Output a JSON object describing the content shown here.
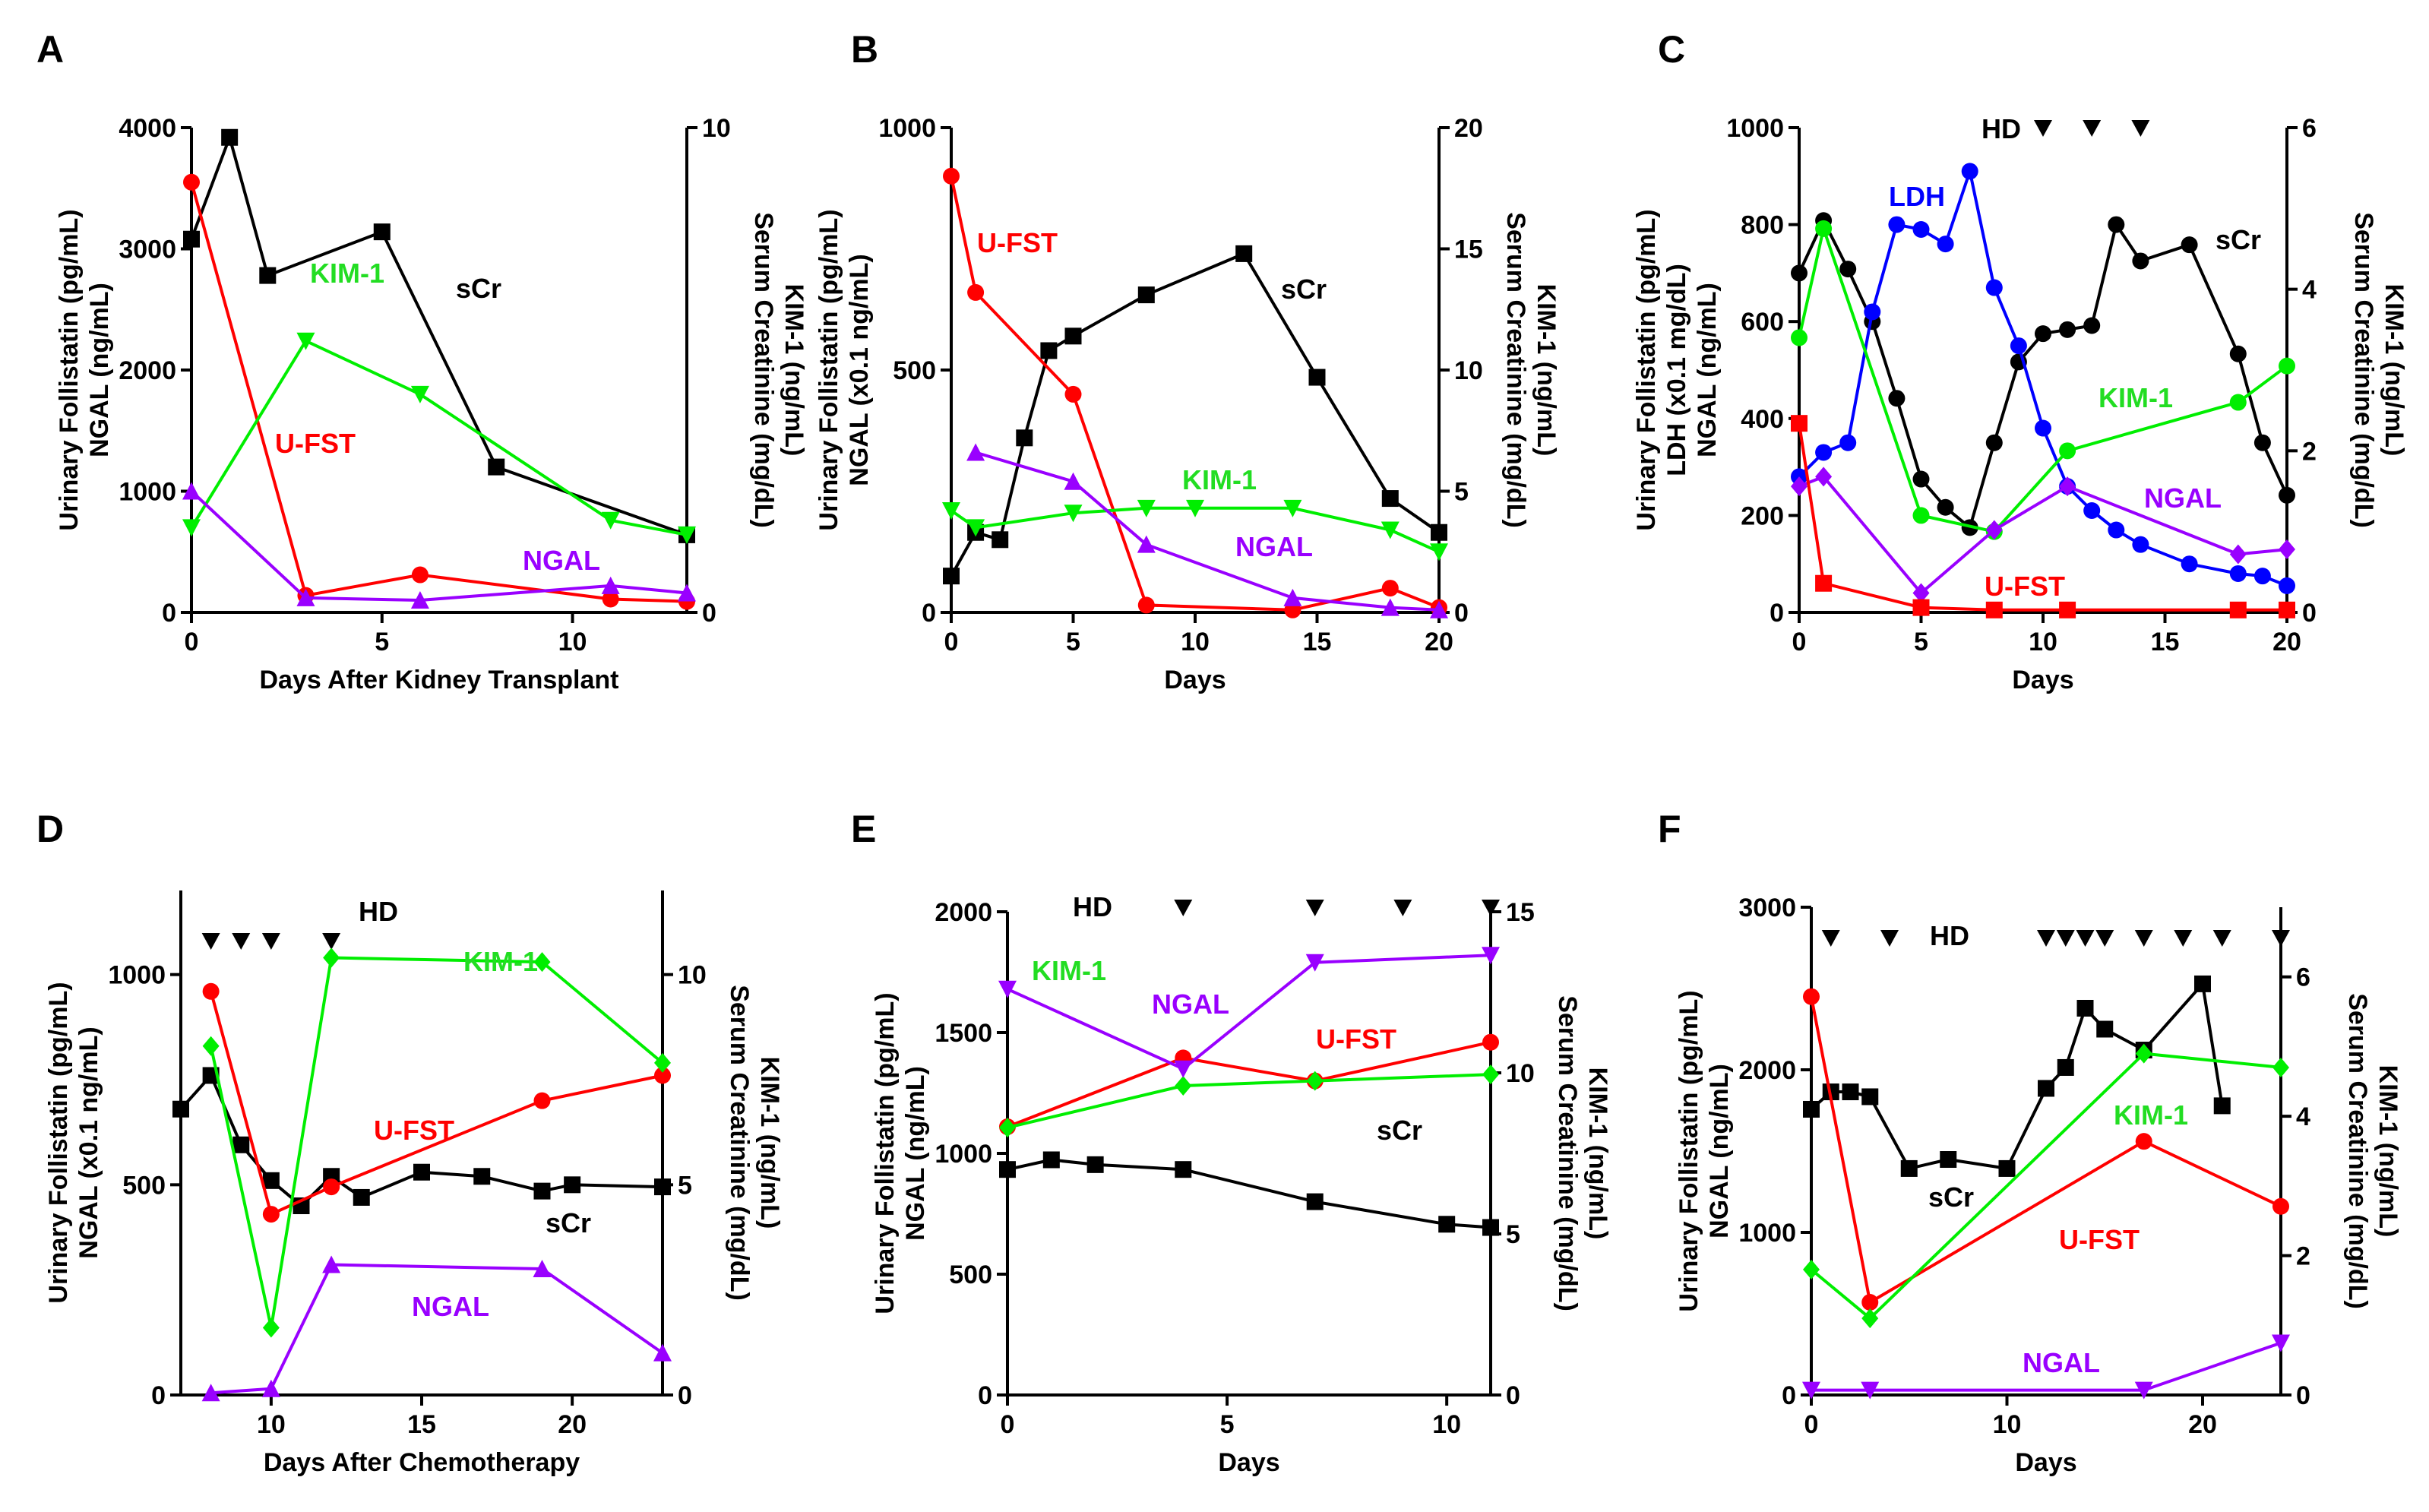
{
  "chart_data": [
    {
      "type": "line",
      "panel": "A",
      "xlabel": "Days After Kidney Transplant",
      "ylabel": [
        "Urinary Follistatin (pg/mL)",
        "NGAL (ng/mL)"
      ],
      "y2label": [
        "Serum Creatinine (mg/dL)",
        "KIM-1 (ng/mL)"
      ],
      "xlim": [
        0,
        13
      ],
      "xticks": [
        0,
        5,
        10
      ],
      "ylim": [
        0,
        4000
      ],
      "yticks": [
        0,
        1000,
        2000,
        3000,
        4000
      ],
      "y2lim": [
        0,
        10
      ],
      "y2ticks": [
        0,
        10
      ],
      "hd_label": "",
      "hd_days": [],
      "series": [
        {
          "name": "sCr",
          "label": "sCr",
          "color": "#000000",
          "marker": "square",
          "axis": "right",
          "x": [
            0,
            1,
            2,
            5,
            8,
            13
          ],
          "y": [
            7.7,
            9.8,
            6.95,
            7.85,
            3.0,
            1.6
          ]
        },
        {
          "name": "U-FST",
          "label": "U-FST",
          "color": "#ff0000",
          "marker": "circle",
          "axis": "left",
          "x": [
            0,
            3,
            6,
            11,
            13
          ],
          "y": [
            3550,
            140,
            310,
            110,
            90
          ]
        },
        {
          "name": "KIM-1",
          "label": "KIM-1",
          "color": "#00ee00",
          "marker": "triangle-down",
          "axis": "right",
          "x": [
            0,
            3,
            6,
            11,
            13
          ],
          "y": [
            1.75,
            5.6,
            4.5,
            1.9,
            1.6
          ]
        },
        {
          "name": "NGAL",
          "label": "NGAL",
          "color": "#9900ff",
          "marker": "triangle-up",
          "axis": "left",
          "x": [
            0,
            3,
            6,
            11,
            13
          ],
          "y": [
            1000,
            120,
            100,
            220,
            160
          ]
        }
      ]
    },
    {
      "type": "line",
      "panel": "B",
      "xlabel": "Days",
      "ylabel": [
        "Urinary Follistatin (pg/mL)",
        "NGAL (x0.1 ng/mL)"
      ],
      "y2label": [
        "Serum Creatinine (mg/dL)",
        "KIM-1 (ng/mL)"
      ],
      "xlim": [
        0,
        20
      ],
      "xticks": [
        0,
        5,
        10,
        15,
        20
      ],
      "ylim": [
        0,
        1000
      ],
      "yticks": [
        0,
        500,
        1000
      ],
      "y2lim": [
        0,
        20
      ],
      "y2ticks": [
        0,
        5,
        10,
        15,
        20
      ],
      "hd_label": "",
      "hd_days": [],
      "series": [
        {
          "name": "sCr",
          "label": "sCr",
          "color": "#000000",
          "marker": "square",
          "axis": "right",
          "x": [
            0,
            1,
            2,
            3,
            4,
            5,
            8,
            12,
            15,
            18,
            20
          ],
          "y": [
            1.5,
            3.3,
            3.0,
            7.2,
            10.8,
            11.4,
            13.1,
            14.8,
            9.7,
            4.7,
            3.3
          ]
        },
        {
          "name": "U-FST",
          "label": "U-FST",
          "color": "#ff0000",
          "marker": "circle",
          "axis": "left",
          "x": [
            0,
            1,
            5,
            8,
            14,
            18,
            20
          ],
          "y": [
            900,
            660,
            450,
            15,
            5,
            50,
            10
          ]
        },
        {
          "name": "KIM-1",
          "label": "KIM-1",
          "color": "#00ee00",
          "marker": "triangle-down",
          "axis": "right",
          "x": [
            0,
            1,
            5,
            8,
            10,
            14,
            18,
            20
          ],
          "y": [
            4.2,
            3.5,
            4.1,
            4.3,
            4.3,
            4.3,
            3.4,
            2.5
          ]
        },
        {
          "name": "NGAL",
          "label": "NGAL",
          "color": "#9900ff",
          "marker": "triangle-up",
          "axis": "left",
          "x": [
            1,
            5,
            8,
            14,
            18,
            20
          ],
          "y": [
            330,
            270,
            140,
            30,
            10,
            5
          ]
        }
      ]
    },
    {
      "type": "line",
      "panel": "C",
      "xlabel": "Days",
      "ylabel": [
        "Urinary Follistatin (pg/mL)",
        "LDH (x0.1 mg/dL)",
        "NGAL (ng/mL)"
      ],
      "y2label": [
        "Serum Creatinine (mg/dL)",
        "KIM-1 (ng/mL)"
      ],
      "xlim": [
        0,
        20
      ],
      "xticks": [
        0,
        5,
        10,
        15,
        20
      ],
      "ylim": [
        0,
        1000
      ],
      "yticks": [
        0,
        200,
        400,
        600,
        800,
        1000
      ],
      "y2lim": [
        0,
        6
      ],
      "y2ticks": [
        0,
        2,
        4,
        6
      ],
      "hd_label": "HD",
      "hd_days": [
        10,
        12,
        14
      ],
      "series": [
        {
          "name": "sCr",
          "label": "sCr",
          "color": "#000000",
          "marker": "circle",
          "axis": "right",
          "x": [
            0,
            1,
            2,
            3,
            4,
            5,
            6,
            7,
            8,
            9,
            10,
            11,
            12,
            13,
            14,
            16,
            18,
            19,
            20
          ],
          "y": [
            4.2,
            4.85,
            4.25,
            3.6,
            2.65,
            1.65,
            1.3,
            1.05,
            2.1,
            3.1,
            3.45,
            3.5,
            3.55,
            4.8,
            4.35,
            4.55,
            3.2,
            2.1,
            1.45
          ]
        },
        {
          "name": "LDH",
          "label": "LDH",
          "color": "#0000ff",
          "marker": "circle",
          "axis": "left",
          "x": [
            0,
            1,
            2,
            3,
            4,
            5,
            6,
            7,
            8,
            9,
            10,
            11,
            12,
            13,
            14,
            16,
            18,
            19,
            20
          ],
          "y": [
            280,
            330,
            350,
            620,
            800,
            790,
            760,
            910,
            670,
            550,
            380,
            260,
            210,
            170,
            140,
            100,
            80,
            75,
            55
          ]
        },
        {
          "name": "KIM-1",
          "label": "KIM-1",
          "color": "#00ee00",
          "marker": "circle",
          "axis": "right",
          "x": [
            0,
            1,
            5,
            8,
            11,
            18,
            20
          ],
          "y": [
            3.4,
            4.75,
            1.2,
            1.0,
            2.0,
            2.6,
            3.05
          ]
        },
        {
          "name": "NGAL",
          "label": "NGAL",
          "color": "#9900ff",
          "marker": "diamond",
          "axis": "left",
          "x": [
            0,
            1,
            5,
            8,
            11,
            18,
            20
          ],
          "y": [
            260,
            280,
            40,
            170,
            260,
            120,
            130
          ]
        },
        {
          "name": "U-FST",
          "label": "U-FST",
          "color": "#ff0000",
          "marker": "square",
          "axis": "left",
          "x": [
            0,
            1,
            5,
            8,
            11,
            18,
            20
          ],
          "y": [
            390,
            60,
            10,
            5,
            5,
            5,
            5
          ]
        }
      ]
    },
    {
      "type": "line",
      "panel": "D",
      "xlabel": "Days After Chemotherapy",
      "ylabel": [
        "Urinary Follistatin (pg/mL)",
        "NGAL (x0.1 ng/mL)"
      ],
      "y2label": [
        "Serum Creatinine (mg/dL)",
        "KIM-1 (ng/mL)"
      ],
      "xlim": [
        7,
        23
      ],
      "xticks": [
        10,
        15,
        20
      ],
      "ylim": [
        0,
        1200
      ],
      "yticks": [
        0,
        500,
        1000
      ],
      "y2lim": [
        0,
        12
      ],
      "y2ticks": [
        0,
        5,
        10
      ],
      "hd_label": "HD",
      "hd_days": [
        8,
        9,
        10,
        12
      ],
      "series": [
        {
          "name": "sCr",
          "label": "sCr",
          "color": "#000000",
          "marker": "square",
          "axis": "right",
          "x": [
            7,
            8,
            9,
            10,
            11,
            12,
            13,
            15,
            17,
            19,
            20,
            23
          ],
          "y": [
            6.8,
            7.6,
            5.95,
            5.1,
            4.5,
            5.2,
            4.7,
            5.3,
            5.2,
            4.85,
            5.0,
            4.95
          ]
        },
        {
          "name": "U-FST",
          "label": "U-FST",
          "color": "#ff0000",
          "marker": "circle",
          "axis": "left",
          "x": [
            8,
            10,
            12,
            19,
            23
          ],
          "y": [
            960,
            430,
            495,
            700,
            760
          ]
        },
        {
          "name": "KIM-1",
          "label": "KIM-1",
          "color": "#00ee00",
          "marker": "diamond",
          "axis": "right",
          "x": [
            8,
            10,
            12,
            19,
            23
          ],
          "y": [
            8.3,
            1.6,
            10.4,
            10.3,
            7.9
          ]
        },
        {
          "name": "NGAL",
          "label": "NGAL",
          "color": "#9900ff",
          "marker": "triangle-up",
          "axis": "left",
          "x": [
            8,
            10,
            12,
            19,
            23
          ],
          "y": [
            5,
            15,
            310,
            300,
            100
          ]
        }
      ]
    },
    {
      "type": "line",
      "panel": "E",
      "xlabel": "Days",
      "ylabel": [
        "Urinary Follistatin (pg/mL)",
        "NGAL (ng/mL)"
      ],
      "y2label": [
        "Serum Creatinine (mg/dL)",
        "KIM-1 (ng/mL)"
      ],
      "xlim": [
        0,
        11
      ],
      "xticks": [
        0,
        5,
        10
      ],
      "ylim": [
        0,
        2000
      ],
      "yticks": [
        0,
        500,
        1000,
        1500,
        2000
      ],
      "y2lim": [
        0,
        15
      ],
      "y2ticks": [
        0,
        5,
        10,
        15
      ],
      "hd_label": "HD",
      "hd_days": [
        4,
        7,
        9,
        11
      ],
      "series": [
        {
          "name": "sCr",
          "label": "sCr",
          "color": "#000000",
          "marker": "square",
          "axis": "right",
          "x": [
            0,
            1,
            2,
            4,
            7,
            10,
            11
          ],
          "y": [
            7.0,
            7.3,
            7.15,
            7.0,
            6.0,
            5.3,
            5.2
          ]
        },
        {
          "name": "U-FST",
          "label": "U-FST",
          "color": "#ff0000",
          "marker": "circle",
          "axis": "left",
          "x": [
            0,
            4,
            7,
            11
          ],
          "y": [
            1110,
            1395,
            1300,
            1460
          ]
        },
        {
          "name": "KIM-1",
          "label": "KIM-1",
          "color": "#00ee00",
          "marker": "diamond",
          "axis": "right",
          "x": [
            0,
            4,
            7,
            11
          ],
          "y": [
            8.3,
            9.6,
            9.75,
            9.95
          ]
        },
        {
          "name": "NGAL",
          "label": "NGAL",
          "color": "#9900ff",
          "marker": "triangle-down",
          "axis": "left",
          "x": [
            0,
            4,
            7,
            11
          ],
          "y": [
            1680,
            1350,
            1790,
            1820
          ]
        }
      ]
    },
    {
      "type": "line",
      "panel": "F",
      "xlabel": "Days",
      "ylabel": [
        "Urinary Follistatin (pg/mL)",
        "NGAL (ng/mL)"
      ],
      "y2label": [
        "Serum Creatinine (mg/dL)",
        "KIM-1 (ng/mL)"
      ],
      "xlim": [
        0,
        24
      ],
      "xticks": [
        0,
        10,
        20
      ],
      "ylim": [
        0,
        3000
      ],
      "yticks": [
        0,
        1000,
        2000,
        3000
      ],
      "y2lim": [
        0,
        7
      ],
      "y2ticks": [
        0,
        2,
        4,
        6
      ],
      "hd_label": "HD",
      "hd_days": [
        1,
        4,
        12,
        13,
        14,
        15,
        17,
        19,
        21,
        24
      ],
      "series": [
        {
          "name": "sCr",
          "label": "sCr",
          "color": "#000000",
          "marker": "square",
          "axis": "right",
          "x": [
            0,
            1,
            2,
            3,
            5,
            7,
            10,
            12,
            13,
            14,
            15,
            17,
            20,
            21
          ],
          "y": [
            4.1,
            4.35,
            4.35,
            4.28,
            3.25,
            3.38,
            3.25,
            4.4,
            4.7,
            5.55,
            5.25,
            4.95,
            5.9,
            4.15
          ]
        },
        {
          "name": "U-FST",
          "label": "U-FST",
          "color": "#ff0000",
          "marker": "circle",
          "axis": "left",
          "x": [
            0,
            3,
            17,
            24
          ],
          "y": [
            2450,
            570,
            1560,
            1160
          ]
        },
        {
          "name": "KIM-1",
          "label": "KIM-1",
          "color": "#00ee00",
          "marker": "diamond",
          "axis": "right",
          "x": [
            0,
            3,
            17,
            24
          ],
          "y": [
            1.8,
            1.1,
            4.9,
            4.7
          ]
        },
        {
          "name": "NGAL",
          "label": "NGAL",
          "color": "#9900ff",
          "marker": "triangle-down",
          "axis": "left",
          "x": [
            0,
            3,
            17,
            24
          ],
          "y": [
            30,
            30,
            30,
            320
          ]
        }
      ]
    }
  ]
}
